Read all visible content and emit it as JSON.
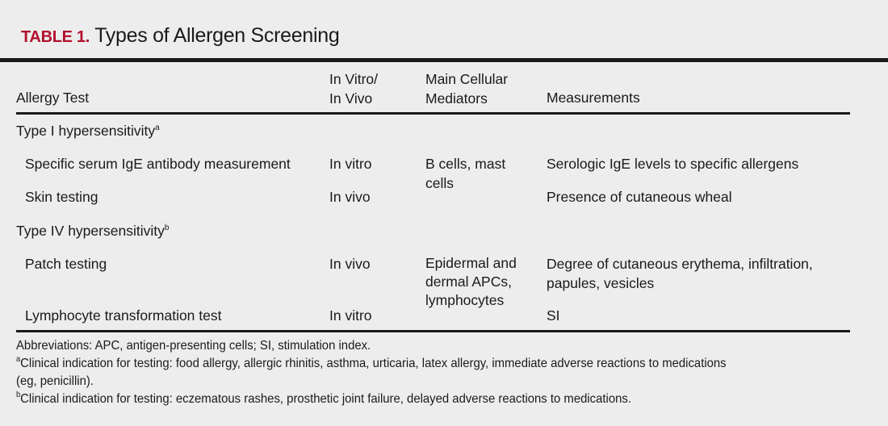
{
  "title": {
    "label": "TABLE 1.",
    "text": "Types of Allergen Screening"
  },
  "headers": [
    "Allergy Test",
    "In Vitro/\nIn Vivo",
    "Main Cellular\nMediators",
    "Measurements"
  ],
  "groups": [
    {
      "label": "Type I hypersensitivity",
      "sup": "a",
      "rows": [
        {
          "test": "Specific serum IgE antibody measurement",
          "vitro": "In vitro",
          "measure": "Serologic IgE levels to specific allergens"
        },
        {
          "test": "Skin testing",
          "vitro": "In vivo",
          "measure": "Presence of cutaneous wheal"
        }
      ],
      "mediators": "B cells, mast\ncells"
    },
    {
      "label": "Type IV hypersensitivity",
      "sup": "b",
      "rows": [
        {
          "test": "Patch testing",
          "vitro": "In vivo",
          "measure": "Degree of cutaneous erythema, infiltration,\npapules, vesicles"
        },
        {
          "test": "Lymphocyte transformation test",
          "vitro": "In vitro",
          "measure": "SI"
        }
      ],
      "mediators": "Epidermal and\ndermal APCs,\nlymphocytes"
    }
  ],
  "footnotes": {
    "abbr": "Abbreviations: APC, antigen-presenting cells; SI, stimulation index.",
    "a": {
      "sup": "a",
      "text": "Clinical indication for testing: food allergy, allergic rhinitis, asthma, urticaria, latex allergy, immediate adverse reactions to medications",
      "cont": "(eg, penicillin)."
    },
    "b": {
      "sup": "b",
      "text": "Clinical indication for testing: eczematous rashes, prosthetic joint failure, delayed adverse reactions to medications."
    }
  },
  "colors": {
    "title_label": "#b0102c",
    "background": "#ededed"
  }
}
